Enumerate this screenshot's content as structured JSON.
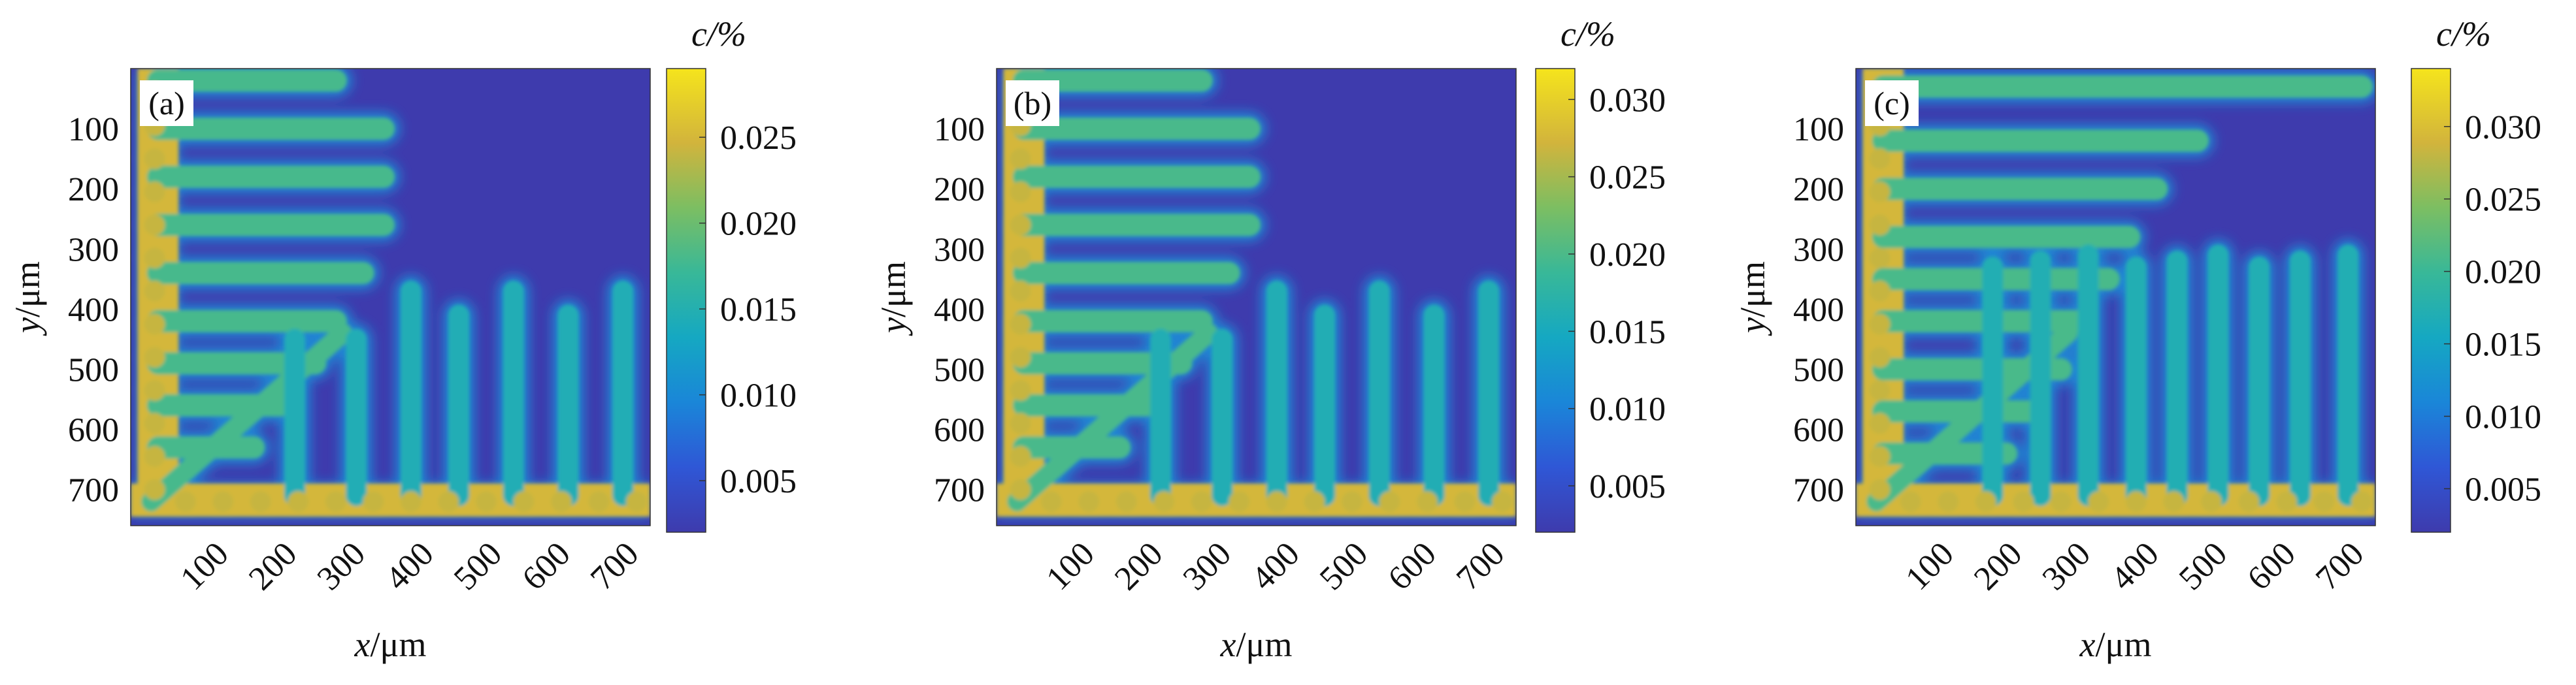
{
  "chart_data": [
    {
      "type": "heatmap",
      "panel_label": "(a)",
      "xlabel_var": "x",
      "xlabel_unit": "/μm",
      "ylabel_var": "y",
      "ylabel_unit": "/μm",
      "colorbar_label": "c/%",
      "xlim": [
        0,
        760
      ],
      "ylim": [
        760,
        0
      ],
      "x_ticks": [
        100,
        200,
        300,
        400,
        500,
        600,
        700
      ],
      "y_ticks": [
        100,
        200,
        300,
        400,
        500,
        600,
        700
      ],
      "colorbar_range": [
        0.002,
        0.029
      ],
      "colorbar_ticks": [
        "0.005",
        "0.010",
        "0.015",
        "0.020",
        "0.025"
      ],
      "colorbar_tick_values": [
        0.005,
        0.01,
        0.015,
        0.02,
        0.025
      ],
      "colormap": "parula",
      "matrix_color": "#3e3bad",
      "description_of_structure": "dendrites"
    },
    {
      "type": "heatmap",
      "panel_label": "(b)",
      "xlabel_var": "x",
      "xlabel_unit": "/μm",
      "ylabel_var": "y",
      "ylabel_unit": "/μm",
      "colorbar_label": "c/%",
      "xlim": [
        0,
        760
      ],
      "ylim": [
        760,
        0
      ],
      "x_ticks": [
        100,
        200,
        300,
        400,
        500,
        600,
        700
      ],
      "y_ticks": [
        100,
        200,
        300,
        400,
        500,
        600,
        700
      ],
      "colorbar_range": [
        0.002,
        0.032
      ],
      "colorbar_ticks": [
        "0.005",
        "0.010",
        "0.015",
        "0.020",
        "0.025",
        "0.030"
      ],
      "colorbar_tick_values": [
        0.005,
        0.01,
        0.015,
        0.02,
        0.025,
        0.03
      ],
      "colormap": "parula",
      "matrix_color": "#3e3bad"
    },
    {
      "type": "heatmap",
      "panel_label": "(c)",
      "xlabel_var": "x",
      "xlabel_unit": "/μm",
      "ylabel_var": "y",
      "ylabel_unit": "/μm",
      "colorbar_label": "c/%",
      "xlim": [
        0,
        760
      ],
      "ylim": [
        760,
        0
      ],
      "x_ticks": [
        100,
        200,
        300,
        400,
        500,
        600,
        700
      ],
      "y_ticks": [
        100,
        200,
        300,
        400,
        500,
        600,
        700
      ],
      "colorbar_range": [
        0.002,
        0.034
      ],
      "colorbar_ticks": [
        "0.005",
        "0.010",
        "0.015",
        "0.020",
        "0.025",
        "0.030"
      ],
      "colorbar_tick_values": [
        0.005,
        0.01,
        0.015,
        0.02,
        0.025,
        0.03
      ],
      "colormap": "parula",
      "matrix_color": "#3e3bad"
    }
  ]
}
